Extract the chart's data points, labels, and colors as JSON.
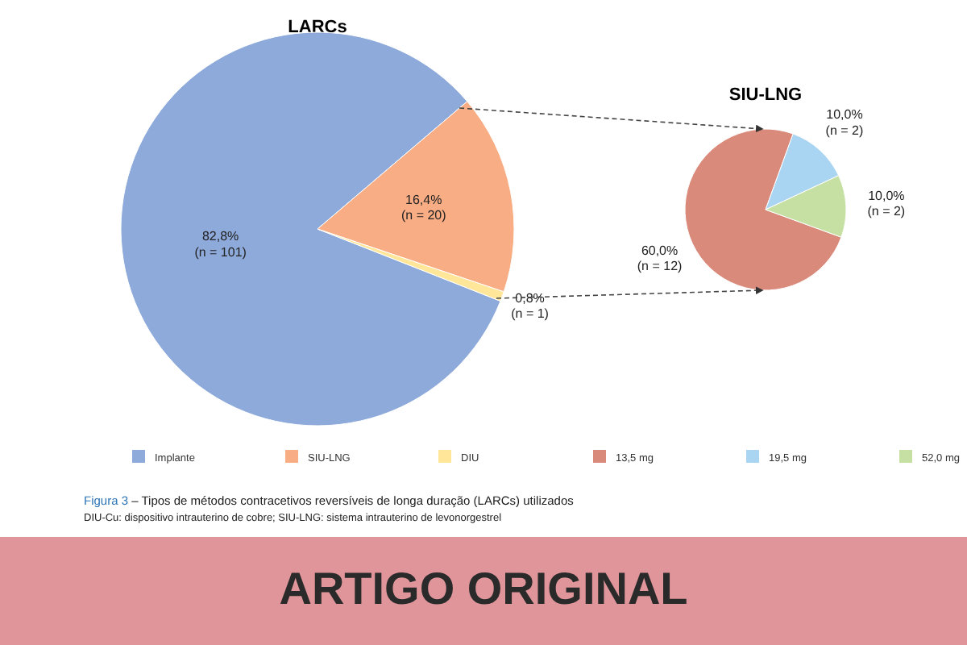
{
  "chart_data": [
    {
      "type": "pie",
      "title": "LARCs",
      "categories": [
        "Implante",
        "SIU-LNG",
        "DIU"
      ],
      "values": [
        82.8,
        16.4,
        0.8
      ],
      "colors": [
        "#8eaadb",
        "#f8ad84",
        "#ffe699"
      ],
      "value_labels": [
        "82,8%\n(n = 101)",
        "16,4%\n(n = 20)",
        "0,8%\n(n = 1)"
      ],
      "legend": "bottom",
      "annotations": [
        "Figura 3 – Tipos de métodos contracetivos reversíveis de longa duração (LARCs) utilizados",
        "DIU-Cu: dispositivo intrauterino de cobre; SIU-LNG: sistema intrauterino de levonorgestrel",
        "ARTIGO ORIGINAL"
      ]
    },
    {
      "type": "pie",
      "title": "SIU-LNG",
      "categories": [
        "13,5 mg",
        "19,5 mg",
        "52,0 mg"
      ],
      "values": [
        60,
        10,
        10
      ],
      "colors": [
        "#d98a7a",
        "#a9d4f2",
        "#c6e0a4"
      ],
      "value_labels": [
        "60,0%\n(n = 12)",
        "10,0%\n(n = 2)",
        "10,0%\n(n = 2)"
      ],
      "legend": "bottom"
    }
  ]
}
